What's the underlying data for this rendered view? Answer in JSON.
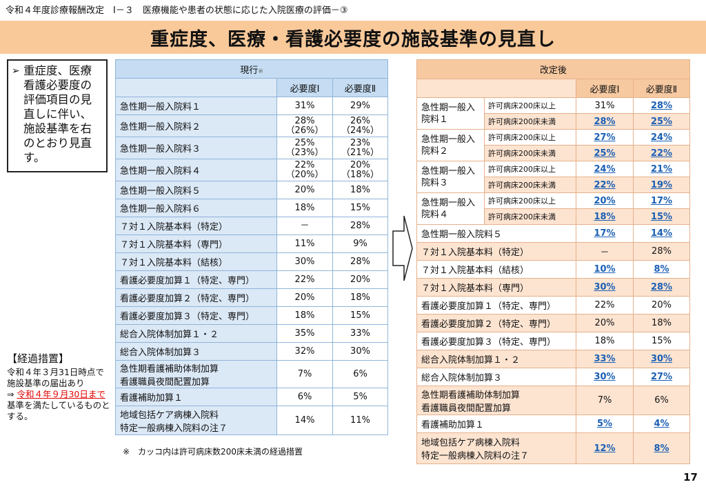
{
  "breadcrumb": "令和４年度診療報酬改定　Ⅰ－３　医療機能や患者の状態に応じた入院医療の評価－③",
  "title": "重症度、医療・看護必要度の施設基準の見直し",
  "summary": "重症度、医療看護必要度の評価項目の見直しに伴い、施設基準を右のとおり見直す。",
  "transition": {
    "heading": "【経過措置】",
    "text1": "令和４年３月31日時点で施設基準の届出あり",
    "arrow": "⇒",
    "highlight": "令和４年９月30日まで",
    "text2": "基準を満たしているものとする。"
  },
  "current": {
    "header": "現行",
    "header_mark": "※",
    "col1": "必要度Ⅰ",
    "col2": "必要度Ⅱ",
    "rows": [
      {
        "name": "急性期一般入院料１",
        "v1": "31%",
        "v2": "29%"
      },
      {
        "name": "急性期一般入院料２",
        "v1": "28%",
        "v1b": "（26%）",
        "v2": "26%",
        "v2b": "（24%）"
      },
      {
        "name": "急性期一般入院料３",
        "v1": "25%",
        "v1b": "（23%）",
        "v2": "23%",
        "v2b": "（21%）"
      },
      {
        "name": "急性期一般入院料４",
        "v1": "22%",
        "v1b": "（20%）",
        "v2": "20%",
        "v2b": "（18%）"
      },
      {
        "name": "急性期一般入院料５",
        "v1": "20%",
        "v2": "18%"
      },
      {
        "name": "急性期一般入院料６",
        "v1": "18%",
        "v2": "15%"
      },
      {
        "name": "７対１入院基本料（特定）",
        "v1": "－",
        "v2": "28%"
      },
      {
        "name": "７対１入院基本料（専門）",
        "v1": "11%",
        "v2": "9%"
      },
      {
        "name": "７対１入院基本料（結核）",
        "v1": "30%",
        "v2": "28%"
      },
      {
        "name": "看護必要度加算１（特定、専門）",
        "v1": "22%",
        "v2": "20%"
      },
      {
        "name": "看護必要度加算２（特定、専門）",
        "v1": "20%",
        "v2": "18%"
      },
      {
        "name": "看護必要度加算３（特定、専門）",
        "v1": "18%",
        "v2": "15%"
      },
      {
        "name": "総合入院体制加算１・２",
        "v1": "35%",
        "v2": "33%"
      },
      {
        "name": "総合入院体制加算３",
        "v1": "32%",
        "v2": "30%"
      },
      {
        "name": "急性期看護補助体制加算",
        "name2": "看護職員夜間配置加算",
        "v1": "7%",
        "v2": "6%"
      },
      {
        "name": "看護補助加算１",
        "v1": "6%",
        "v2": "5%"
      },
      {
        "name": "地域包括ケア病棟入院料",
        "name2": "特定一般病棟入院料の注７",
        "v1": "14%",
        "v2": "11%"
      }
    ],
    "footnote": "※　カッコ内は許可病床数200床未満の経過措置"
  },
  "revised": {
    "header": "改定後",
    "col1": "必要度Ⅰ",
    "col2": "必要度Ⅱ",
    "groups": [
      {
        "name": "急性期一般入院料１",
        "sub1": "許可病床200床以上",
        "a1": "31%",
        "a2": "28%",
        "sub2": "許可病床200床未満",
        "b1": "28%",
        "b2": "25%"
      },
      {
        "name": "急性期一般入院料２",
        "sub1": "許可病床200床以上",
        "a1": "27%",
        "a2": "24%",
        "sub2": "許可病床200床未満",
        "b1": "25%",
        "b2": "22%"
      },
      {
        "name": "急性期一般入院料３",
        "sub1": "許可病床200床以上",
        "a1": "24%",
        "a2": "21%",
        "sub2": "許可病床200床未満",
        "b1": "22%",
        "b2": "19%"
      },
      {
        "name": "急性期一般入院料４",
        "sub1": "許可病床200床以上",
        "a1": "20%",
        "a2": "17%",
        "sub2": "許可病床200床未満",
        "b1": "18%",
        "b2": "15%"
      }
    ],
    "rows": [
      {
        "name": "急性期一般入院料５",
        "v1": "17%",
        "v2": "14%"
      },
      {
        "name": "７対１入院基本料（特定）",
        "v1": "－",
        "v2": "28%"
      },
      {
        "name": "７対１入院基本料（結核）",
        "v1": "10%",
        "v2": "8%"
      },
      {
        "name": "７対１入院基本料（専門）",
        "v1": "30%",
        "v2": "28%"
      },
      {
        "name": "看護必要度加算１（特定、専門）",
        "v1": "22%",
        "v2": "20%"
      },
      {
        "name": "看護必要度加算２（特定、専門）",
        "v1": "20%",
        "v2": "18%"
      },
      {
        "name": "看護必要度加算３（特定、専門）",
        "v1": "18%",
        "v2": "15%"
      },
      {
        "name": "総合入院体制加算１・２",
        "v1": "33%",
        "v2": "30%"
      },
      {
        "name": "総合入院体制加算３",
        "v1": "30%",
        "v2": "27%"
      },
      {
        "name": "急性期看護補助体制加算",
        "name2": "看護職員夜間配置加算",
        "v1": "7%",
        "v2": "6%"
      },
      {
        "name": "看護補助加算１",
        "v1": "5%",
        "v2": "4%"
      },
      {
        "name": "地域包括ケア病棟入院料",
        "name2": "特定一般病棟入院料の注７",
        "v1": "12%",
        "v2": "8%"
      }
    ]
  },
  "page_number": "17"
}
